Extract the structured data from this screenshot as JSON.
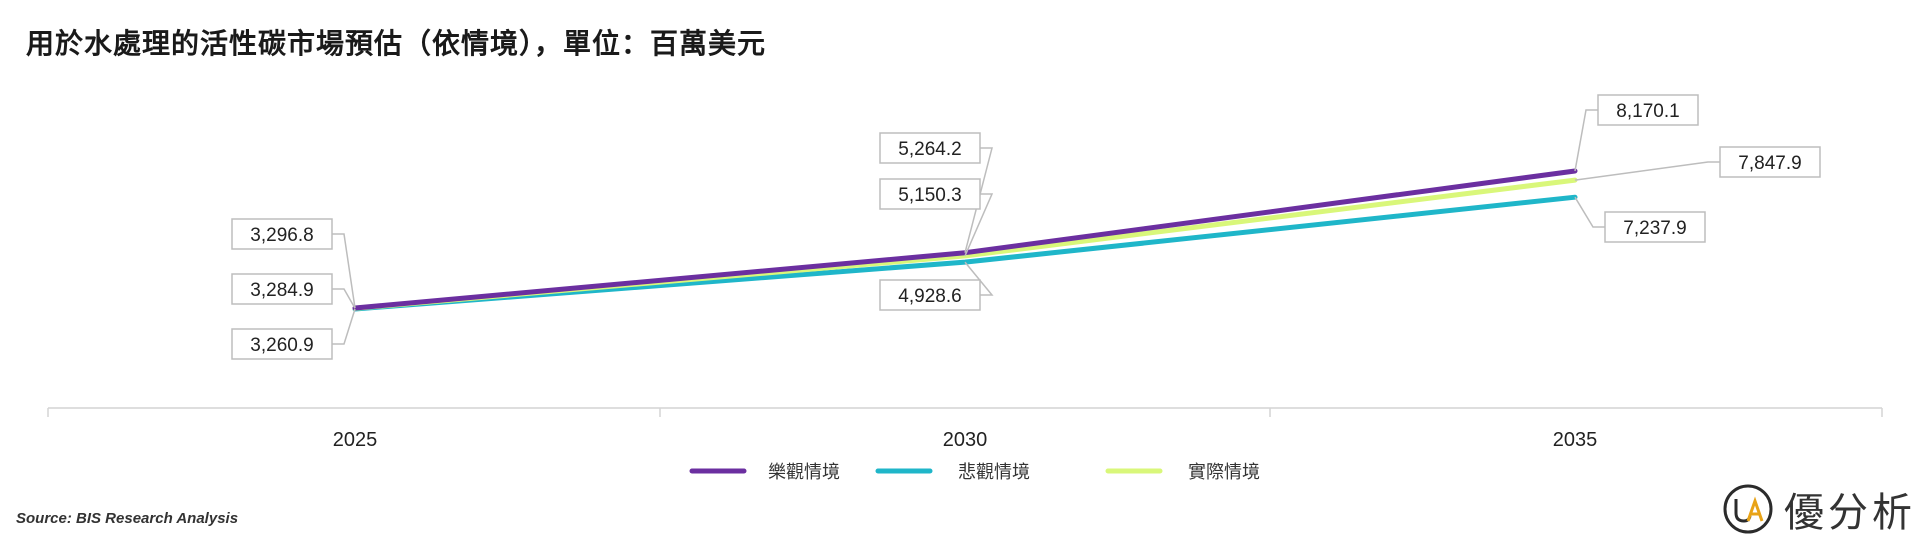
{
  "chart_data": {
    "type": "line",
    "title": "用於水處理的活性碳市場預估（依情境），單位：百萬美元",
    "categories": [
      "2025",
      "2030",
      "2035"
    ],
    "series": [
      {
        "name": "樂觀情境",
        "color": "#6b2fa0",
        "values": [
          3296.8,
          5264.2,
          8170.1
        ],
        "labels": [
          "3,296.8",
          "5,264.2",
          "8,170.1"
        ]
      },
      {
        "name": "悲觀情境",
        "color": "#1fb6c9",
        "values": [
          3260.9,
          4928.6,
          7237.9
        ],
        "labels": [
          "3,260.9",
          "4,928.6",
          "7,237.9"
        ]
      },
      {
        "name": "實際情境",
        "color": "#d9f77a",
        "values": [
          3284.9,
          5150.3,
          7847.9
        ],
        "labels": [
          "3,284.9",
          "5,150.3",
          "7,847.9"
        ]
      }
    ],
    "legend_position": "bottom",
    "grid": false
  },
  "source": "Source: BIS Research Analysis",
  "logo": {
    "mark": "UA",
    "text": "優分析"
  }
}
